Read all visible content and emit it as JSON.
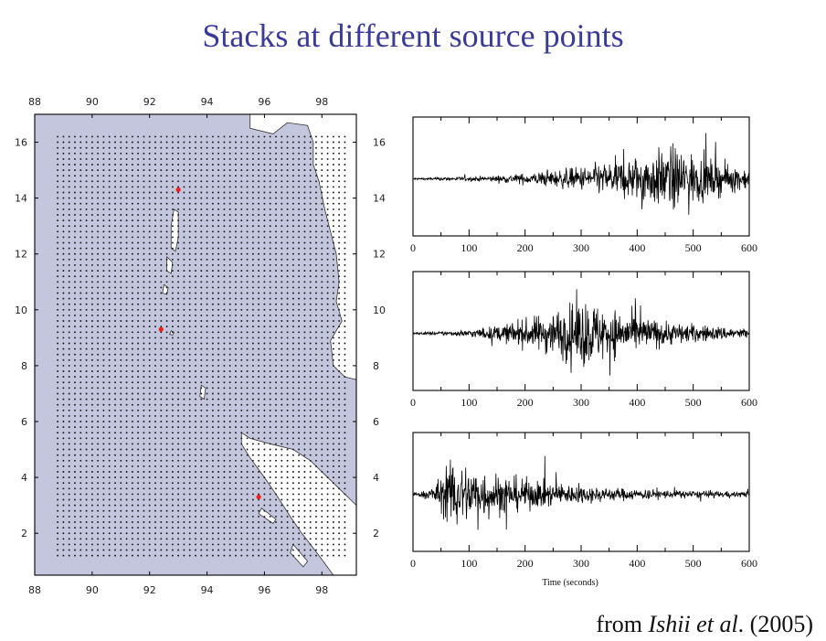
{
  "title": "Stacks at different source points",
  "credit": {
    "prefix": "from ",
    "authors": "Ishii et al",
    "suffix": ". (2005)"
  },
  "map": {
    "lon_ticks": [
      "88",
      "90",
      "92",
      "94",
      "96",
      "98"
    ],
    "lat_ticks_left": [
      "2",
      "4",
      "6",
      "8",
      "10",
      "12",
      "14",
      "16"
    ],
    "lat_ticks_right": [
      "2",
      "4",
      "6",
      "8",
      "10",
      "12",
      "14",
      "16"
    ],
    "lon_range": [
      88,
      99.2
    ],
    "lat_range": [
      0.5,
      17
    ],
    "grid_lon_range": [
      88.8,
      98.8
    ],
    "grid_lat_range": [
      1.2,
      16.3
    ],
    "sources": [
      {
        "lon": 93.0,
        "lat": 14.3
      },
      {
        "lon": 92.4,
        "lat": 9.3
      },
      {
        "lon": 95.8,
        "lat": 3.3
      }
    ],
    "colors": {
      "sea": "#c4c6de",
      "land": "#ffffff",
      "dot": "#1a1a1a",
      "source": "#e8201f"
    }
  },
  "chart_data": [
    {
      "type": "line",
      "x_ticks": [
        "0",
        "100",
        "200",
        "300",
        "400",
        "500",
        "600"
      ],
      "xlim": [
        0,
        600
      ],
      "xlabel": "",
      "envelope": {
        "onset": 40,
        "peak": 470,
        "decay": 100,
        "peak_amplitude": 0.95
      }
    },
    {
      "type": "line",
      "x_ticks": [
        "0",
        "100",
        "200",
        "300",
        "400",
        "500",
        "600"
      ],
      "xlim": [
        0,
        600
      ],
      "xlabel": "",
      "envelope": {
        "onset": 20,
        "peak": 305,
        "decay": 130,
        "peak_amplitude": 1.0
      }
    },
    {
      "type": "line",
      "x_ticks": [
        "0",
        "100",
        "200",
        "300",
        "400",
        "500",
        "600"
      ],
      "xlim": [
        0,
        600
      ],
      "xlabel": "Time (seconds)",
      "envelope": {
        "onset": 0,
        "peak": 70,
        "decay": 150,
        "peak_amplitude": 1.0
      }
    }
  ]
}
